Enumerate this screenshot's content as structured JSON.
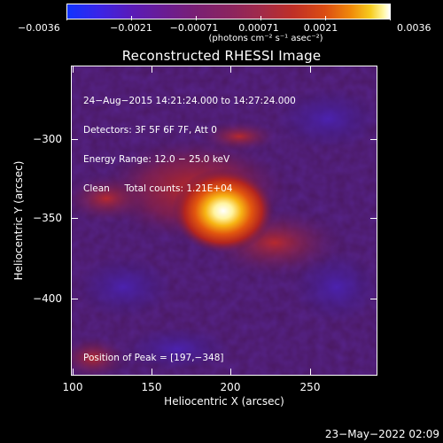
{
  "colorbar": {
    "tick_labels": [
      "−0.0036",
      "−0.0021",
      "−0.00071",
      "0.00071",
      "0.0021",
      "0.0036"
    ],
    "unit_label": "(photons cm⁻² s⁻¹ asec⁻²)",
    "colors": [
      "#1033ff",
      "#6a1c93",
      "#bf2f27",
      "#f08a0a",
      "#ffffff"
    ]
  },
  "title": "Reconstructed RHESSI Image",
  "info": {
    "line1": "24−Aug−2015 14:21:24.000 to 14:27:24.000",
    "line2": "Detectors: 3F 5F 6F 7F, Att 0",
    "line3": "Energy Range: 12.0 − 25.0 keV",
    "line4": "Clean     Total counts: 1.21E+04"
  },
  "peak_label": "Position of Peak = [197,−348]",
  "axes": {
    "xlabel": "Heliocentric X (arcsec)",
    "ylabel": "Heliocentric Y (arcsec)",
    "xticks": [
      "100",
      "150",
      "200",
      "250"
    ],
    "yticks": [
      "−300",
      "−350",
      "−400"
    ]
  },
  "timestamp": "23−May−2022 02:09",
  "image": {
    "peak_x_arcsec": 197,
    "peak_y_arcsec": -348,
    "x_range": [
      99,
      290
    ],
    "y_range": [
      -451,
      -256
    ],
    "colormap": "hot-with-blue-negative"
  }
}
